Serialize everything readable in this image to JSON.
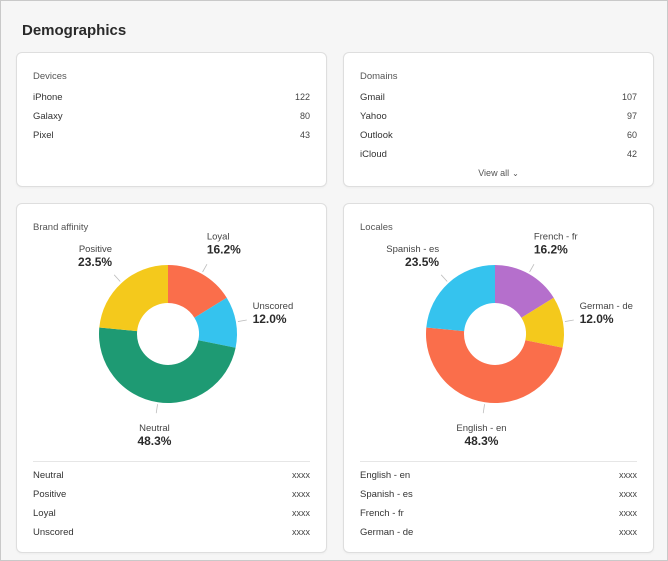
{
  "page": {
    "title": "Demographics"
  },
  "devices": {
    "title": "Devices",
    "items": [
      {
        "label": "iPhone",
        "value": "122"
      },
      {
        "label": "Galaxy",
        "value": "80"
      },
      {
        "label": "Pixel",
        "value": "43"
      }
    ]
  },
  "domains": {
    "title": "Domains",
    "items": [
      {
        "label": "Gmail",
        "value": "107"
      },
      {
        "label": "Yahoo",
        "value": "97"
      },
      {
        "label": "Outlook",
        "value": "60"
      },
      {
        "label": "iCloud",
        "value": "42"
      }
    ],
    "view_all": "View all"
  },
  "brand_affinity": {
    "title": "Brand affinity",
    "legend": [
      {
        "label": "Neutral",
        "value": "xxxx"
      },
      {
        "label": "Positive",
        "value": "xxxx"
      },
      {
        "label": "Loyal",
        "value": "xxxx"
      },
      {
        "label": "Unscored",
        "value": "xxxx"
      }
    ]
  },
  "locales": {
    "title": "Locales",
    "legend": [
      {
        "label": "English - en",
        "value": "xxxx"
      },
      {
        "label": "Spanish - es",
        "value": "xxxx"
      },
      {
        "label": "French - fr",
        "value": "xxxx"
      },
      {
        "label": "German - de",
        "value": "xxxx"
      }
    ]
  },
  "chart_data": [
    {
      "type": "pie",
      "title": "Brand affinity",
      "categories": [
        "Loyal",
        "Unscored",
        "Neutral",
        "Positive"
      ],
      "values": [
        16.2,
        12.0,
        48.3,
        23.5
      ],
      "value_labels": [
        "16.2%",
        "12.0%",
        "48.3%",
        "23.5%"
      ],
      "colors": [
        "#fa6e4b",
        "#35c3ee",
        "#1e9a73",
        "#f4c91c"
      ]
    },
    {
      "type": "pie",
      "title": "Locales",
      "categories": [
        "French - fr",
        "German - de",
        "English - en",
        "Spanish - es"
      ],
      "values": [
        16.2,
        12.0,
        48.3,
        23.5
      ],
      "value_labels": [
        "16.2%",
        "12.0%",
        "48.3%",
        "23.5%"
      ],
      "colors": [
        "#b56fcc",
        "#f4c91c",
        "#fa6e4b",
        "#35c3ee"
      ]
    }
  ]
}
